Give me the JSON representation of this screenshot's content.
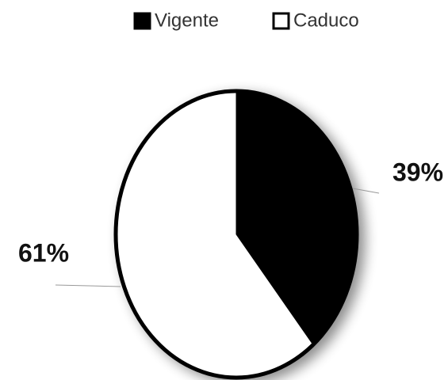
{
  "chart_data": {
    "type": "pie",
    "categories": [
      "Vigente",
      "Caduco"
    ],
    "values": [
      39,
      61
    ],
    "value_labels": [
      "39%",
      "61%"
    ],
    "colors": [
      "#000000",
      "#ffffff"
    ],
    "legend": "top"
  }
}
